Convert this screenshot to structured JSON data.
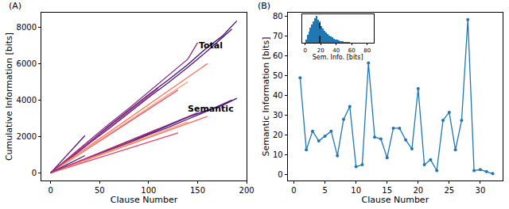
{
  "chart_data": [
    {
      "type": "line",
      "title": "(A)",
      "x_label": "Clause Number",
      "y_label": "Cumulative Information [bits]",
      "xlim": [
        -9.5,
        200
      ],
      "xticks": [
        0,
        50,
        100,
        150,
        200
      ],
      "ylim": [
        -420,
        8800
      ],
      "yticks": [
        0,
        2000,
        4000,
        6000,
        8000
      ],
      "grid": false,
      "annotations": [
        {
          "text": "Total",
          "x": 163,
          "y": 7000
        },
        {
          "text": "Semantic",
          "x": 163,
          "y": 3500
        }
      ],
      "series": [
        {
          "color": "#3b0f70",
          "x": [
            0,
            20,
            40,
            60,
            80,
            100,
            120,
            140,
            160,
            175,
            190
          ],
          "values": [
            0,
            850,
            1700,
            2600,
            3450,
            4300,
            5100,
            5950,
            6900,
            7500,
            8350
          ]
        },
        {
          "color": "#51127c",
          "x": [
            0,
            20,
            40,
            60,
            80,
            100,
            120,
            140,
            160,
            185
          ],
          "values": [
            0,
            800,
            1650,
            2450,
            3300,
            4150,
            4950,
            5800,
            6700,
            7900
          ]
        },
        {
          "color": "#8c2981",
          "x": [
            0,
            20,
            40,
            60,
            80,
            100,
            120,
            140,
            150
          ],
          "values": [
            0,
            900,
            1800,
            2700,
            3550,
            4450,
            5350,
            6250,
            7150
          ]
        },
        {
          "color": "#de4968",
          "x": [
            0,
            20,
            40,
            60,
            80,
            100,
            120,
            130
          ],
          "values": [
            0,
            700,
            1400,
            2100,
            2800,
            3500,
            4200,
            4550
          ]
        },
        {
          "color": "#f7705c",
          "x": [
            0,
            20,
            40,
            60,
            80,
            100,
            120,
            140,
            160
          ],
          "values": [
            0,
            750,
            1500,
            2250,
            3000,
            3750,
            4500,
            5250,
            6000
          ]
        },
        {
          "color": "#fe9f6d",
          "x": [
            0,
            20,
            40,
            60,
            80,
            100,
            120,
            140
          ],
          "values": [
            0,
            720,
            1440,
            2150,
            2870,
            3600,
            4300,
            5000
          ]
        },
        {
          "color": "#51127c",
          "x": [
            0,
            10,
            20,
            35
          ],
          "values": [
            0,
            580,
            1200,
            2050
          ]
        },
        {
          "color": "#b73779",
          "x": [
            0,
            20,
            40,
            60,
            80,
            100,
            110
          ],
          "values": [
            0,
            850,
            1700,
            2550,
            3400,
            4250,
            4650
          ]
        },
        {
          "color": "#3b0f70",
          "x": [
            0,
            20,
            40,
            60,
            80,
            100,
            120,
            140,
            160,
            175,
            190
          ],
          "values": [
            0,
            420,
            850,
            1300,
            1720,
            2150,
            2600,
            3050,
            3450,
            3700,
            4100
          ]
        },
        {
          "color": "#51127c",
          "x": [
            0,
            20,
            40,
            60,
            80,
            100,
            120,
            140,
            160,
            185
          ],
          "values": [
            0,
            400,
            820,
            1250,
            1650,
            2100,
            2500,
            2950,
            3400,
            4000
          ]
        },
        {
          "color": "#8c2981",
          "x": [
            0,
            20,
            40,
            60,
            80,
            100,
            120,
            140,
            150
          ],
          "values": [
            0,
            430,
            880,
            1320,
            1750,
            2200,
            2650,
            3100,
            3300
          ]
        },
        {
          "color": "#de4968",
          "x": [
            0,
            20,
            40,
            60,
            80,
            100,
            120,
            130
          ],
          "values": [
            0,
            340,
            680,
            1020,
            1360,
            1700,
            2050,
            2200
          ]
        },
        {
          "color": "#f7705c",
          "x": [
            0,
            20,
            40,
            60,
            80,
            100,
            120,
            140,
            160
          ],
          "values": [
            0,
            380,
            760,
            1150,
            1540,
            1930,
            2330,
            2720,
            3100
          ]
        },
        {
          "color": "#fe9f6d",
          "x": [
            0,
            20,
            40,
            60,
            80,
            100,
            120,
            140
          ],
          "values": [
            0,
            400,
            800,
            1200,
            1600,
            2000,
            2400,
            2800
          ]
        },
        {
          "color": "#51127c",
          "x": [
            0,
            10,
            20,
            35
          ],
          "values": [
            0,
            280,
            560,
            950
          ]
        },
        {
          "color": "#b73779",
          "x": [
            0,
            20,
            40,
            60,
            80,
            100,
            110
          ],
          "values": [
            0,
            440,
            880,
            1320,
            1760,
            2200,
            2420
          ]
        }
      ]
    },
    {
      "type": "line",
      "title": "(B)",
      "marker": "circle",
      "color": "#1f77b4",
      "x_label": "Clause Number",
      "y_label": "Semantic Information [bits]",
      "xlim": [
        -1,
        33.6
      ],
      "xticks": [
        0,
        5,
        10,
        15,
        20,
        25,
        30
      ],
      "ylim": [
        -3,
        82
      ],
      "yticks": [
        0,
        10,
        20,
        30,
        40,
        50,
        60,
        70,
        80
      ],
      "grid": false,
      "x": [
        1,
        2,
        3,
        4,
        5,
        6,
        7,
        8,
        9,
        10,
        11,
        12,
        13,
        14,
        15,
        16,
        17,
        18,
        19,
        20,
        21,
        22,
        23,
        24,
        25,
        26,
        27,
        28,
        29,
        30,
        31,
        32
      ],
      "values": [
        49,
        12.5,
        22,
        17,
        19.5,
        22,
        9.5,
        28,
        34.5,
        4,
        5,
        56.5,
        19,
        18,
        8.5,
        23.5,
        23.5,
        17.5,
        13,
        43.5,
        5,
        7.5,
        2,
        27.5,
        31.5,
        12.5,
        27.5,
        78.5,
        2,
        2.5,
        1.5,
        0.5
      ]
    },
    {
      "type": "histogram",
      "color": "#1f77b4",
      "x_label": "Sem. Info. [bits]",
      "xlim": [
        -4,
        88
      ],
      "xticks": [
        0,
        20,
        40,
        60,
        80
      ],
      "ylim": [
        0,
        945
      ],
      "tick_labels": "x",
      "vline": 19,
      "bins": [
        0,
        2,
        4,
        6,
        8,
        10,
        12,
        14,
        16,
        18,
        20,
        22,
        24,
        26,
        28,
        30,
        32,
        34,
        36,
        38,
        40,
        42,
        44,
        46,
        48,
        50,
        52,
        54,
        56,
        58,
        60,
        62,
        64,
        66,
        68,
        70,
        72,
        74,
        76,
        78,
        80,
        82,
        84
      ],
      "counts": [
        120,
        260,
        380,
        500,
        620,
        720,
        820,
        900,
        760,
        650,
        560,
        480,
        410,
        350,
        300,
        250,
        210,
        175,
        145,
        120,
        100,
        82,
        68,
        56,
        46,
        38,
        31,
        25,
        20,
        16,
        13,
        10,
        8,
        6,
        5,
        4,
        3,
        2,
        2,
        1,
        1,
        1
      ]
    }
  ]
}
